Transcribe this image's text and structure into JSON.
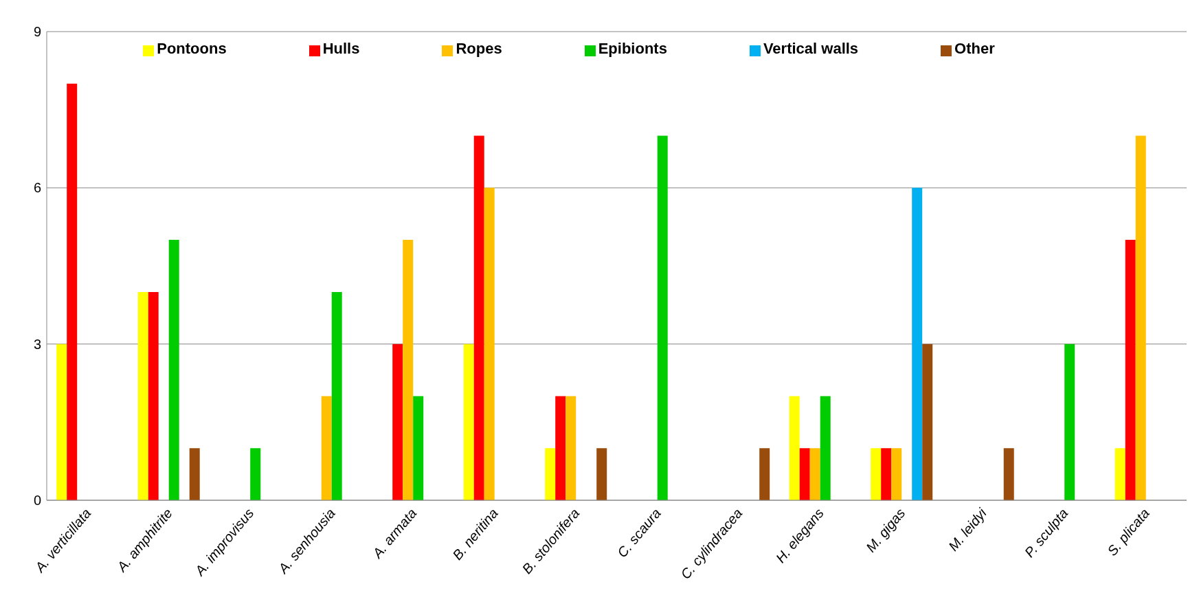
{
  "chart_data": {
    "type": "bar",
    "categories": [
      "A. verticillata",
      "A. amphitrite",
      "A. improvisus",
      "A. senhousia",
      "A. armata",
      "B. neritina",
      "B. stolonifera",
      "C. scaura",
      "C. cylindracea",
      "H. elegans",
      "M. gigas",
      "M. leidyi",
      "P. sculpta",
      "S. plicata"
    ],
    "series": [
      {
        "name": "Pontoons",
        "color": "#ffff00",
        "values": [
          3,
          4,
          0,
          0,
          0,
          3,
          1,
          0,
          0,
          2,
          1,
          0,
          0,
          1
        ]
      },
      {
        "name": "Hulls",
        "color": "#ff0000",
        "values": [
          8,
          4,
          0,
          0,
          3,
          7,
          2,
          0,
          0,
          1,
          1,
          0,
          0,
          5
        ]
      },
      {
        "name": "Ropes",
        "color": "#ffc000",
        "values": [
          0,
          0,
          0,
          2,
          5,
          6,
          2,
          0,
          0,
          1,
          1,
          0,
          0,
          7
        ]
      },
      {
        "name": "Epibionts",
        "color": "#00cc00",
        "values": [
          0,
          5,
          1,
          4,
          2,
          0,
          0,
          7,
          0,
          2,
          0,
          0,
          3,
          0
        ]
      },
      {
        "name": "Vertical walls",
        "color": "#00b0f0",
        "values": [
          0,
          0,
          0,
          0,
          0,
          0,
          0,
          0,
          0,
          0,
          6,
          0,
          0,
          0
        ]
      },
      {
        "name": "Other",
        "color": "#994c0c",
        "values": [
          0,
          1,
          0,
          0,
          0,
          0,
          1,
          0,
          1,
          0,
          3,
          1,
          0,
          0
        ]
      }
    ],
    "ylim": [
      0,
      9
    ],
    "yticks": [
      0,
      3,
      6,
      9
    ],
    "grid": "y",
    "legend": "top"
  }
}
